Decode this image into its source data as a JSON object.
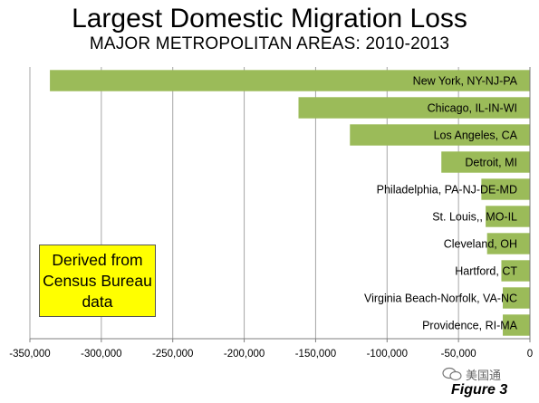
{
  "page": {
    "title": "Largest Domestic Migration Loss",
    "subtitle": "MAJOR METROPOLITAN AREAS: 2010-2013",
    "callout_lines": [
      "Derived from",
      "Census Bureau",
      "data"
    ],
    "watermark_text": "美国通",
    "figure_label": "Figure 3"
  },
  "chart_data": {
    "type": "bar",
    "orientation": "horizontal",
    "title": "Largest Domestic Migration Loss",
    "subtitle": "MAJOR METROPOLITAN AREAS: 2010-2013",
    "categories": [
      "New York, NY-NJ-PA",
      "Chicago, IL-IN-WI",
      "Los Angeles, CA",
      "Detroit,  MI",
      "Philadelphia, PA-NJ-DE-MD",
      "St. Louis,, MO-IL",
      "Cleveland, OH",
      "Hartford, CT",
      "Virginia Beach-Norfolk, VA-NC",
      "Providence, RI-MA"
    ],
    "values": [
      -336000,
      -162000,
      -126000,
      -62000,
      -34000,
      -31000,
      -30000,
      -20000,
      -19000,
      -19000
    ],
    "xlim": [
      -350000,
      0
    ],
    "xticks": [
      -350000,
      -300000,
      -250000,
      -200000,
      -150000,
      -100000,
      -50000,
      0
    ],
    "xtick_labels": [
      "-350,000",
      "-300,000",
      "-250,000",
      "-200,000",
      "-150,000",
      "-100,000",
      "-50,000",
      "0"
    ],
    "grid": true,
    "bar_color": "#9bbb59",
    "grid_color": "#a6a6a6"
  }
}
